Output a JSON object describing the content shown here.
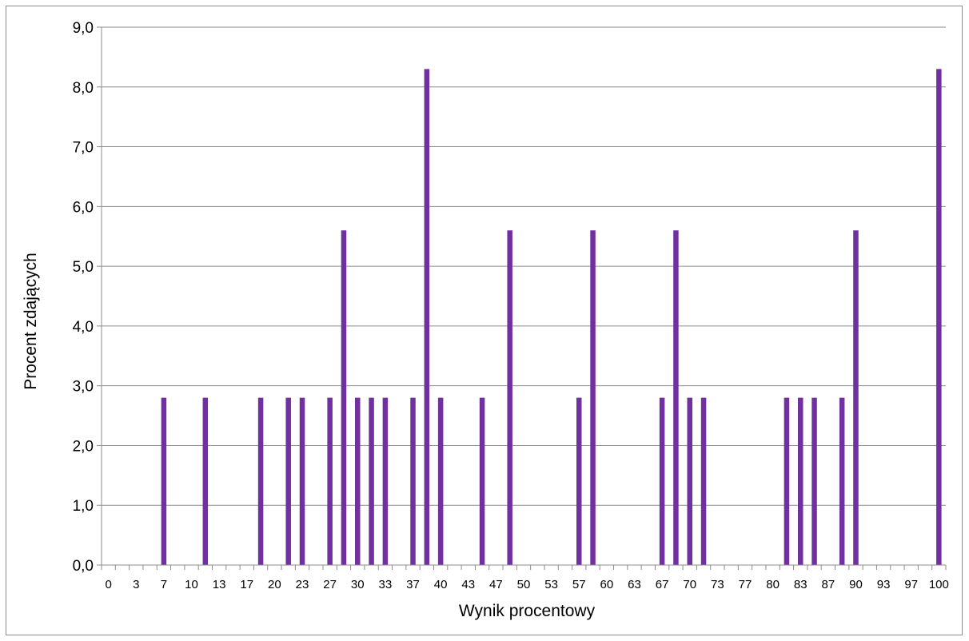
{
  "chart_data": {
    "type": "bar",
    "title": "",
    "xlabel": "Wynik procentowy",
    "ylabel": "Procent zdających",
    "ylim": [
      0,
      9
    ],
    "y_ticks": [
      "0,0",
      "1,0",
      "2,0",
      "3,0",
      "4,0",
      "5,0",
      "6,0",
      "7,0",
      "8,0",
      "9,0"
    ],
    "grid": "horizontal",
    "legend": "none",
    "bar_color": "#7030A0",
    "categories": [
      "0",
      "2",
      "3",
      "5",
      "7",
      "8",
      "10",
      "12",
      "13",
      "15",
      "17",
      "18",
      "20",
      "22",
      "23",
      "25",
      "27",
      "28",
      "30",
      "32",
      "33",
      "35",
      "37",
      "38",
      "40",
      "42",
      "43",
      "45",
      "47",
      "48",
      "50",
      "52",
      "53",
      "55",
      "57",
      "58",
      "60",
      "62",
      "63",
      "65",
      "67",
      "68",
      "70",
      "72",
      "73",
      "75",
      "77",
      "78",
      "80",
      "82",
      "83",
      "85",
      "87",
      "88",
      "90",
      "92",
      "93",
      "95",
      "97",
      "98",
      "100"
    ],
    "x_tick_labels": [
      "0",
      "3",
      "7",
      "10",
      "13",
      "17",
      "20",
      "23",
      "27",
      "30",
      "33",
      "37",
      "40",
      "43",
      "47",
      "50",
      "53",
      "57",
      "60",
      "63",
      "67",
      "70",
      "73",
      "77",
      "80",
      "83",
      "87",
      "90",
      "93",
      "97",
      "100"
    ],
    "values": [
      0,
      0,
      0,
      0,
      2.8,
      0,
      0,
      2.8,
      0,
      0,
      0,
      2.8,
      0,
      2.8,
      2.8,
      0,
      2.8,
      5.6,
      2.8,
      2.8,
      2.8,
      0,
      2.8,
      8.3,
      2.8,
      0,
      0,
      2.8,
      0,
      5.6,
      0,
      0,
      0,
      0,
      2.8,
      5.6,
      0,
      0,
      0,
      0,
      2.8,
      5.6,
      2.8,
      2.8,
      0,
      0,
      0,
      0,
      0,
      2.8,
      2.8,
      2.8,
      0,
      2.8,
      5.6,
      0,
      0,
      0,
      0,
      0,
      8.3
    ]
  }
}
